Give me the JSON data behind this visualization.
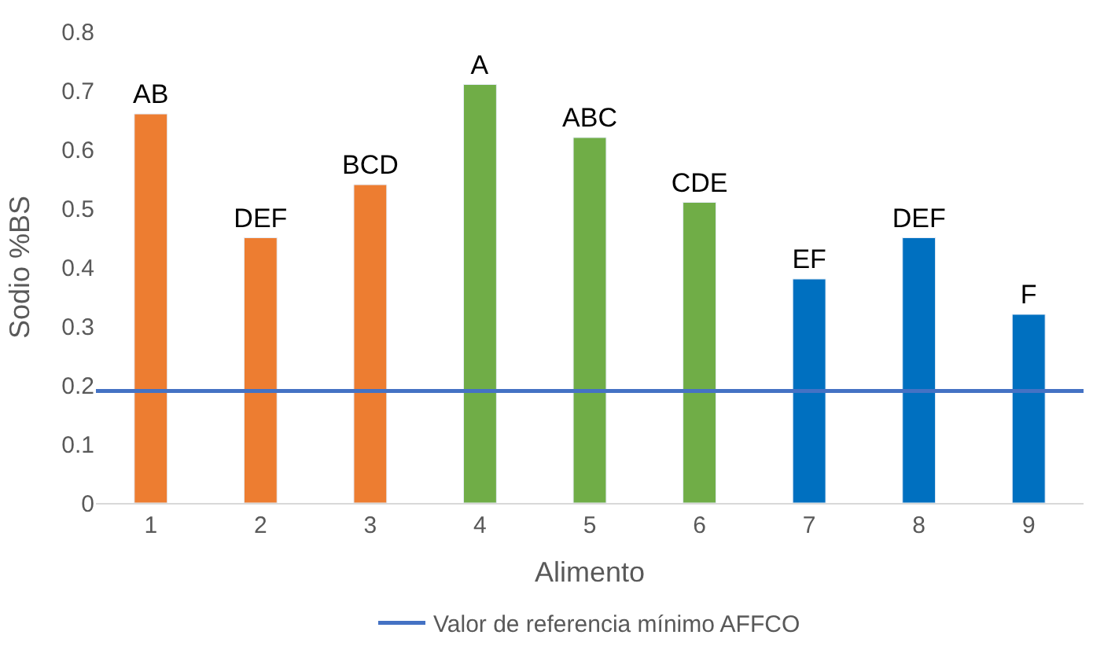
{
  "chart_data": {
    "type": "bar",
    "xlabel": "Alimento",
    "ylabel": "Sodio %BS",
    "categories": [
      "1",
      "2",
      "3",
      "4",
      "5",
      "6",
      "7",
      "8",
      "9"
    ],
    "values": [
      0.66,
      0.45,
      0.54,
      0.71,
      0.62,
      0.51,
      0.38,
      0.45,
      0.32
    ],
    "colors": [
      "#ed7d31",
      "#ed7d31",
      "#ed7d31",
      "#70ad47",
      "#70ad47",
      "#70ad47",
      "#0070c0",
      "#0070c0",
      "#0070c0"
    ],
    "value_labels": [
      "AB",
      "DEF",
      "BCD",
      "A",
      "ABC",
      "CDE",
      "EF",
      "DEF",
      "F"
    ],
    "ylim": [
      0,
      0.8
    ],
    "yticks": [
      0,
      0.1,
      0.2,
      0.3,
      0.4,
      0.5,
      0.6,
      0.7,
      0.8
    ],
    "ref_lines": [
      {
        "axis": "y",
        "value": 0.19,
        "label": "Valor de referencia mínimo AFFCO",
        "color": "#4472c4"
      }
    ],
    "legend": "bottom"
  }
}
